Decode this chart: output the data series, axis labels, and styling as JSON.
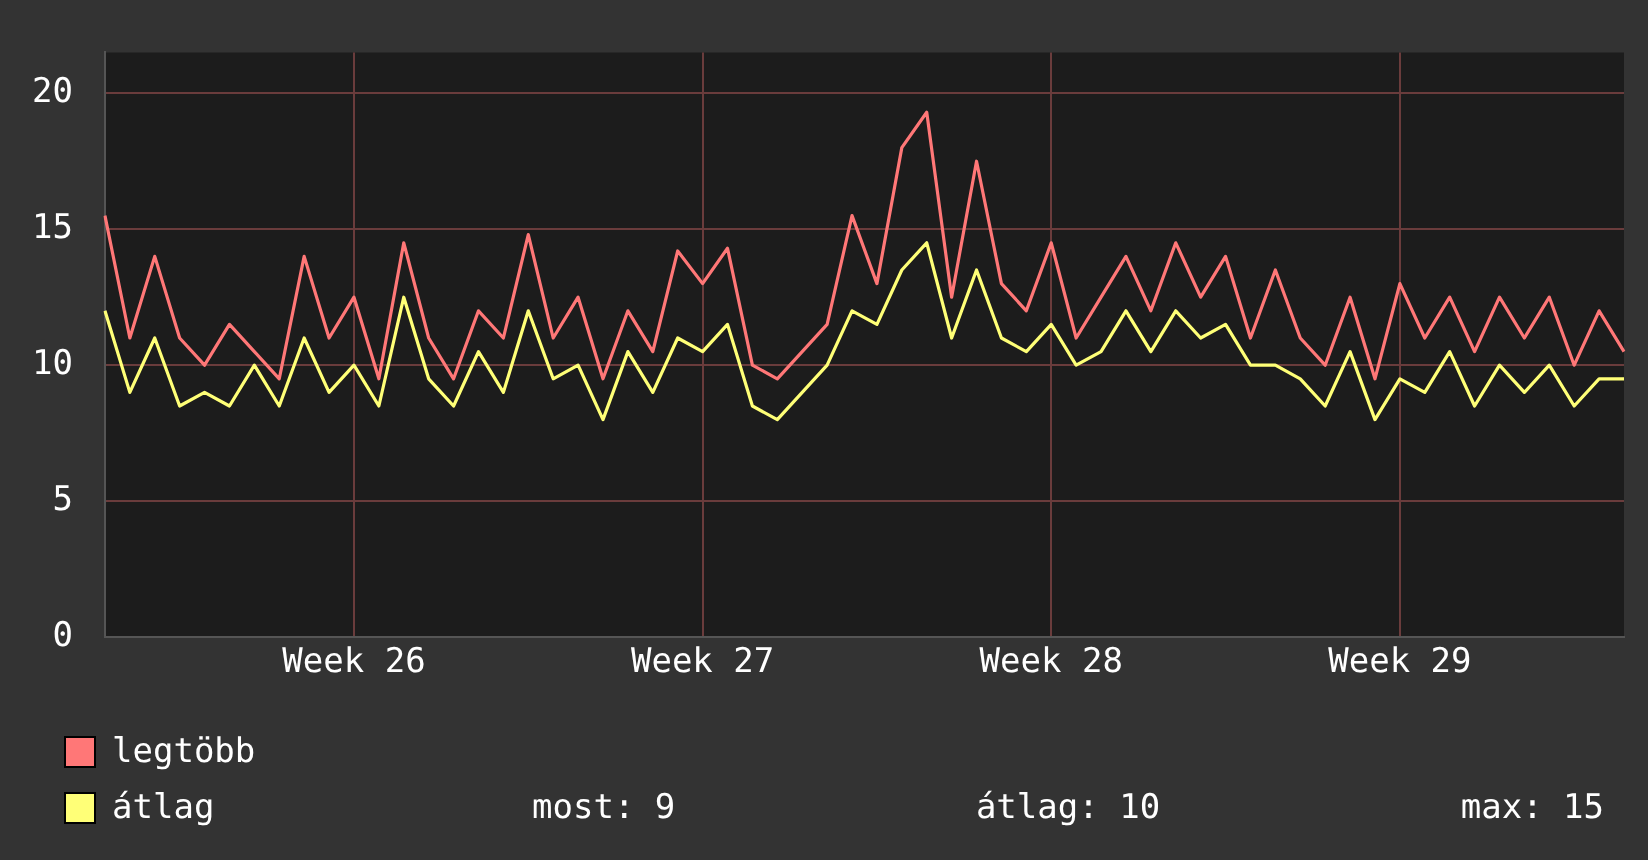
{
  "chart_data": {
    "type": "line",
    "categories": [
      null,
      null,
      null,
      null,
      null,
      null,
      null,
      null,
      null,
      null,
      "Week 26",
      null,
      null,
      null,
      null,
      null,
      null,
      null,
      null,
      null,
      null,
      null,
      null,
      null,
      "Week 27",
      null,
      null,
      null,
      null,
      null,
      null,
      null,
      null,
      null,
      null,
      null,
      null,
      null,
      "Week 28",
      null,
      null,
      null,
      null,
      null,
      null,
      null,
      null,
      null,
      null,
      null,
      null,
      null,
      "Week 29",
      null,
      null,
      null,
      null,
      null,
      null,
      null,
      null,
      null
    ],
    "series": [
      {
        "name": "legtöbb",
        "color": "#ff7777",
        "values": [
          15.5,
          11,
          14,
          11,
          10,
          11.5,
          10.5,
          9.5,
          14,
          11,
          12.5,
          9.5,
          14.5,
          11,
          9.5,
          12,
          11,
          14.8,
          11,
          12.5,
          9.5,
          12,
          10.5,
          14.2,
          13,
          14.3,
          10,
          9.5,
          10.5,
          11.5,
          15.5,
          13,
          18,
          19.3,
          12.5,
          17.5,
          13,
          12,
          14.5,
          11,
          12.5,
          14,
          12,
          14.5,
          12.5,
          14,
          11,
          13.5,
          11,
          10,
          12.5,
          9.5,
          13,
          11,
          12.5,
          10.5,
          12.5,
          11,
          12.5,
          10,
          12,
          10.5
        ]
      },
      {
        "name": "átlag",
        "color": "#ffff77",
        "values": [
          12,
          9,
          11,
          8.5,
          9,
          8.5,
          10,
          8.5,
          11,
          9,
          10,
          8.5,
          12.5,
          9.5,
          8.5,
          10.5,
          9,
          12,
          9.5,
          10,
          8,
          10.5,
          9,
          11,
          10.5,
          11.5,
          8.5,
          8,
          9,
          10,
          12,
          11.5,
          13.5,
          14.5,
          11,
          13.5,
          11,
          10.5,
          11.5,
          10,
          10.5,
          12,
          10.5,
          12,
          11,
          11.5,
          10,
          10,
          9.5,
          8.5,
          10.5,
          8,
          9.5,
          9,
          10.5,
          8.5,
          10,
          9,
          10,
          8.5,
          9.5,
          9.5
        ]
      }
    ],
    "ylim": [
      0,
      21.5
    ],
    "yticks": [
      0,
      5,
      10,
      15,
      20
    ],
    "grid": true,
    "legend": "bottom",
    "marker": "none",
    "line_style": "solid",
    "annotations": [
      "most: 9",
      "átlag: 10",
      "max: 15"
    ]
  }
}
